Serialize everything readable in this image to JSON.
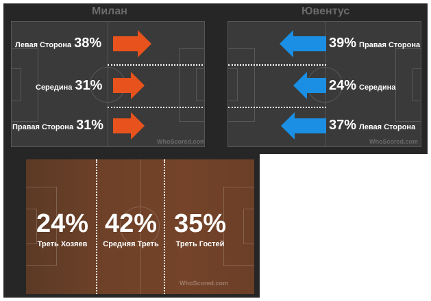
{
  "teams": {
    "home": {
      "name": "Милан",
      "lanes": [
        {
          "name": "Левая Сторона",
          "pct": "38%"
        },
        {
          "name": "Середина",
          "pct": "31%"
        },
        {
          "name": "Правая Сторона",
          "pct": "31%"
        }
      ]
    },
    "away": {
      "name": "Ювентус",
      "lanes": [
        {
          "pct": "39%",
          "name": "Правая Сторона"
        },
        {
          "pct": "24%",
          "name": "Середина"
        },
        {
          "pct": "37%",
          "name": "Левая Сторона"
        }
      ]
    }
  },
  "zones": [
    {
      "pct": "24%",
      "name": "Треть Хозяев"
    },
    {
      "pct": "42%",
      "name": "Средняя Треть"
    },
    {
      "pct": "35%",
      "name": "Треть Гостей"
    }
  ],
  "watermark": "WhoScored.com",
  "colors": {
    "home_arrow": "#e8531d",
    "away_arrow": "#1a8fe3",
    "panel": "#262626",
    "pitch": "#3a3a3a"
  }
}
